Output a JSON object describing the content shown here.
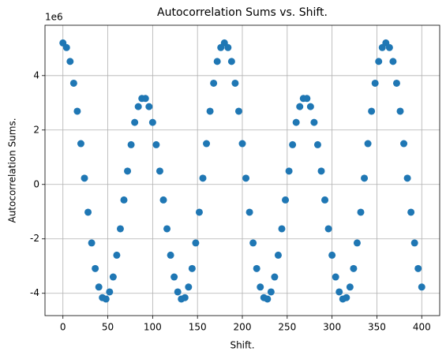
{
  "chart_data": {
    "type": "scatter",
    "title": "Autocorrelation Sums vs. Shift.",
    "xlabel": "Shift.",
    "ylabel": "Autocorrelation Sums.",
    "offset_label": "1e6",
    "color": "#1f77b4",
    "grid": true,
    "xlim": [
      -20,
      420
    ],
    "ylim": [
      -4.82,
      5.85
    ],
    "xticks": [
      0,
      50,
      100,
      150,
      200,
      250,
      300,
      350,
      400
    ],
    "yticks": [
      -4,
      -2,
      0,
      2,
      4
    ],
    "x": [
      0,
      4,
      8,
      12,
      16,
      20,
      24,
      28,
      32,
      36,
      40,
      44,
      48,
      52,
      56,
      60,
      64,
      68,
      72,
      76,
      80,
      84,
      88,
      92,
      96,
      100,
      104,
      108,
      112,
      116,
      120,
      124,
      128,
      132,
      136,
      140,
      144,
      148,
      152,
      156,
      160,
      164,
      168,
      172,
      176,
      180,
      184,
      188,
      192,
      196,
      200,
      204,
      208,
      212,
      216,
      220,
      224,
      228,
      232,
      236,
      240,
      244,
      248,
      252,
      256,
      260,
      264,
      268,
      272,
      276,
      280,
      284,
      288,
      292,
      296,
      300,
      304,
      308,
      312,
      316,
      320,
      324,
      328,
      332,
      336,
      340,
      344,
      348,
      352,
      356,
      360,
      364,
      368,
      372,
      376,
      380,
      384,
      388,
      392,
      396,
      400
    ],
    "values": [
      5.2,
      5.03,
      4.52,
      3.72,
      2.69,
      1.5,
      0.23,
      -1.02,
      -2.15,
      -3.09,
      -3.77,
      -4.16,
      -4.21,
      -3.95,
      -3.4,
      -2.6,
      -1.63,
      -0.57,
      0.49,
      1.46,
      2.28,
      2.86,
      3.16,
      3.16,
      2.86,
      2.28,
      1.46,
      0.49,
      -0.57,
      -1.63,
      -2.6,
      -3.4,
      -3.95,
      -4.21,
      -4.16,
      -3.77,
      -3.09,
      -2.15,
      -1.02,
      0.23,
      1.5,
      2.69,
      3.72,
      4.52,
      5.03,
      5.2,
      5.03,
      4.52,
      3.72,
      2.69,
      1.5,
      0.23,
      -1.02,
      -2.15,
      -3.09,
      -3.77,
      -4.16,
      -4.21,
      -3.95,
      -3.4,
      -2.6,
      -1.63,
      -0.57,
      0.49,
      1.46,
      2.28,
      2.86,
      3.16,
      3.16,
      2.86,
      2.28,
      1.46,
      0.49,
      -0.57,
      -1.63,
      -2.6,
      -3.4,
      -3.95,
      -4.21,
      -4.16,
      -3.77,
      -3.09,
      -2.15,
      -1.02,
      0.23,
      1.5,
      2.69,
      3.72,
      4.52,
      5.03,
      5.2,
      5.03,
      4.52,
      3.72,
      2.69,
      1.5,
      0.23,
      -1.02,
      -2.15,
      -3.09,
      -3.77
    ]
  }
}
